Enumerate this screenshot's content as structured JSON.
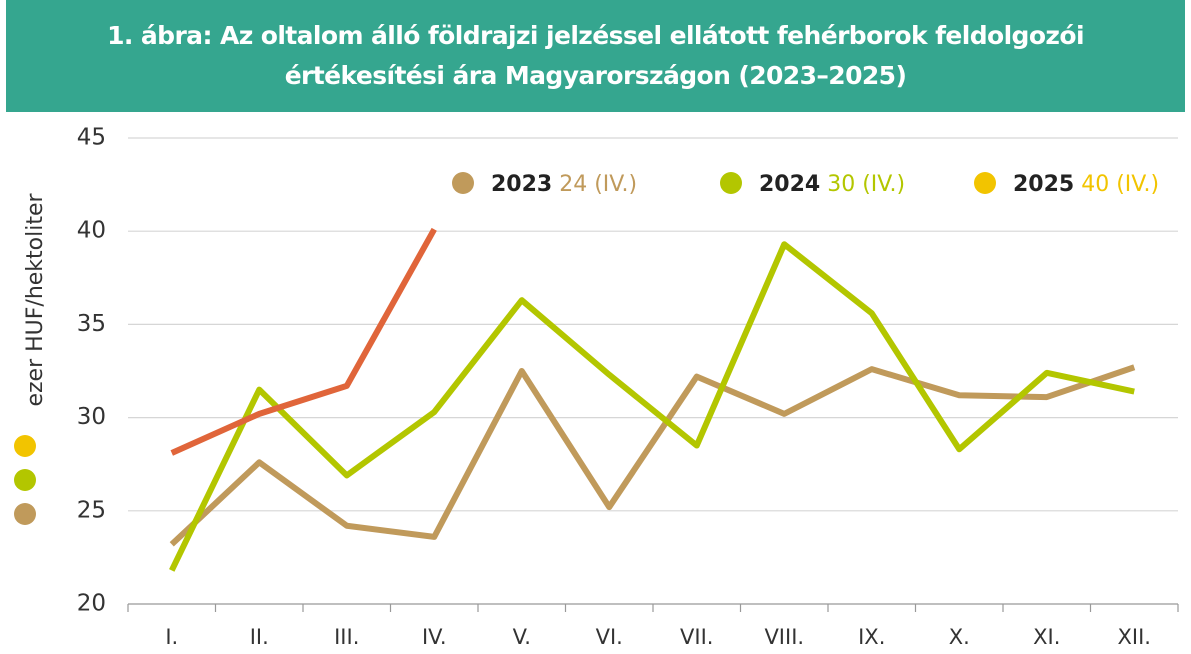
{
  "chart_data": {
    "type": "line",
    "title": [
      "1. ábra: Az oltalom álló földrajzi jelzéssel ellátott fehérborok feldolgozói",
      "értékesítési ára Magyarországon (2023–2025)"
    ],
    "y_label": "ezer HUF/hektoliter",
    "categories": [
      "I.",
      "II.",
      "III.",
      "IV.",
      "V.",
      "VI.",
      "VII.",
      "VIII.",
      "IX.",
      "X.",
      "XI.",
      "XII."
    ],
    "series": [
      {
        "name": "2023",
        "legend_label": "24 (IV.)",
        "color": "#c09a5b",
        "marker_color": "#c09a5b",
        "values": [
          23.2,
          27.6,
          24.2,
          23.6,
          32.5,
          25.2,
          32.2,
          30.2,
          32.6,
          31.2,
          31.1,
          32.7
        ]
      },
      {
        "name": "2024",
        "legend_label": "30 (IV.)",
        "color": "#b3c600",
        "marker_color": "#b3c600",
        "values": [
          21.8,
          31.5,
          26.9,
          30.3,
          36.3,
          32.3,
          28.5,
          39.3,
          35.6,
          28.3,
          32.4,
          31.4
        ]
      },
      {
        "name": "2025",
        "legend_label": "40 (IV.)",
        "color": "#e0653a",
        "marker_color": "#f2c400",
        "values": [
          28.1,
          30.2,
          31.7,
          40.1,
          null,
          null,
          null,
          null,
          null,
          null,
          null,
          null
        ]
      }
    ],
    "ylim": [
      20,
      45
    ],
    "yticks": [
      20,
      25,
      30,
      35,
      40,
      45
    ],
    "grid": true
  }
}
